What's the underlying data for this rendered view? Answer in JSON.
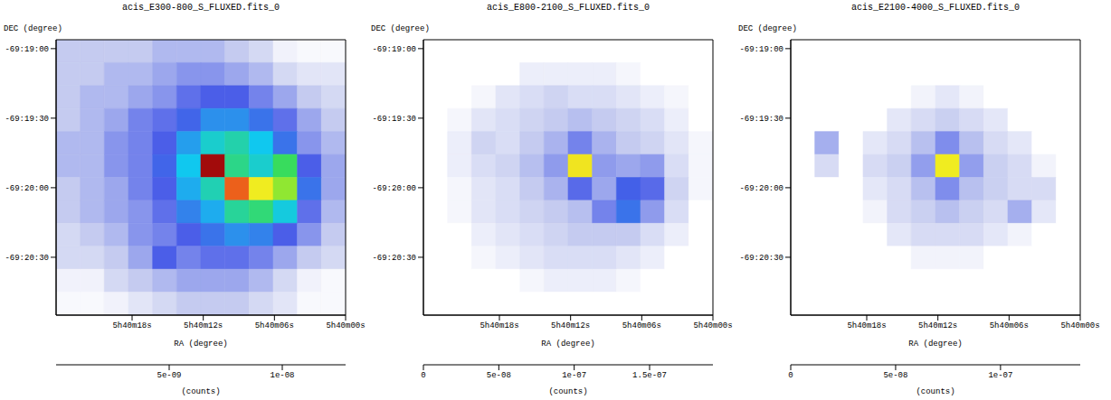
{
  "chart_data": [
    {
      "type": "heatmap",
      "title": "acis_E300-800_S_FLUXED.fits_0",
      "x_label": "RA (degree)",
      "y_label": "DEC (degree)",
      "xlim": [
        85.1017,
        85.0
      ],
      "ylim": [
        -69.3486,
        -69.3156
      ],
      "xticks": [
        {
          "value": 85.075,
          "label": "5h40m18s"
        },
        {
          "value": 85.05,
          "label": "5h40m12s"
        },
        {
          "value": 85.025,
          "label": "5h40m06s"
        },
        {
          "value": 85.0,
          "label": "5h40m00s"
        }
      ],
      "yticks": [
        {
          "value": -69.316667,
          "label": "-69:19:00"
        },
        {
          "value": -69.325,
          "label": "-69:19:30"
        },
        {
          "value": -69.333333,
          "label": "-69:20:00"
        },
        {
          "value": -69.341667,
          "label": "-69:20:30"
        }
      ],
      "cells": [
        [
          4e-10,
          4e-10,
          4e-10,
          4e-10,
          5e-10,
          5e-10,
          5e-10,
          4e-10,
          3e-10,
          1e-10,
          5e-11,
          5e-11
        ],
        [
          4e-10,
          4e-10,
          5e-10,
          5e-10,
          6e-10,
          7e-10,
          7e-10,
          6e-10,
          5e-10,
          3e-10,
          2e-10,
          2e-10
        ],
        [
          4e-10,
          5e-10,
          5e-10,
          6e-10,
          7e-10,
          9e-10,
          1e-09,
          1e-09,
          8e-10,
          6e-10,
          4e-10,
          3e-10
        ],
        [
          4e-10,
          5e-10,
          6e-10,
          8e-10,
          9e-10,
          1.1e-09,
          1.4e-09,
          1.4e-09,
          1.2e-09,
          9e-10,
          6e-10,
          4e-10
        ],
        [
          5e-10,
          5e-10,
          7e-10,
          8e-10,
          1e-09,
          1.5e-09,
          2.2e-09,
          2.6e-09,
          1.8e-09,
          1.2e-09,
          7e-10,
          5e-10
        ],
        [
          5e-10,
          5e-10,
          7e-10,
          8e-10,
          1.1e-09,
          1.8e-09,
          1.15e-08,
          3e-09,
          2.2e-09,
          3.5e-09,
          1e-09,
          6e-10
        ],
        [
          4e-10,
          5e-10,
          6e-10,
          8e-10,
          1e-09,
          1.6e-09,
          2.5e-09,
          9.5e-09,
          6.5e-09,
          5e-09,
          1.2e-09,
          6e-10
        ],
        [
          4e-10,
          5e-10,
          6e-10,
          7e-10,
          9e-10,
          1.3e-09,
          1.6e-09,
          2.8e-09,
          3.2e-09,
          2e-09,
          9e-10,
          5e-10
        ],
        [
          3e-10,
          4e-10,
          5e-10,
          7e-10,
          8e-10,
          1e-09,
          1.2e-09,
          1.4e-09,
          1.3e-09,
          1e-09,
          7e-10,
          4e-10
        ],
        [
          3e-10,
          3e-10,
          4e-10,
          6e-10,
          1e-09,
          8e-10,
          9e-10,
          9e-10,
          8e-10,
          6e-10,
          4e-10,
          3e-10
        ],
        [
          1e-10,
          1e-10,
          3e-10,
          4e-10,
          5e-10,
          6e-10,
          6e-10,
          6e-10,
          5e-10,
          3e-10,
          1e-10,
          5e-11
        ],
        [
          5e-11,
          5e-11,
          1e-10,
          2e-10,
          3e-10,
          4e-10,
          4e-10,
          4e-10,
          3e-10,
          2e-10,
          5e-11,
          5e-11
        ]
      ],
      "colorbar_range": [
        0,
        1.28e-08
      ],
      "colorbar_ticks": [
        {
          "value": 5e-09,
          "label": "5e-09"
        },
        {
          "value": 1e-08,
          "label": "1e-08"
        }
      ],
      "colorbar_label": "(counts)"
    },
    {
      "type": "heatmap",
      "title": "acis_E800-2100_S_FLUXED.fits_0",
      "x_label": "RA (degree)",
      "y_label": "DEC (degree)",
      "xlim": [
        85.1017,
        85.0
      ],
      "ylim": [
        -69.3486,
        -69.3156
      ],
      "xticks": [
        {
          "value": 85.075,
          "label": "5h40m18s"
        },
        {
          "value": 85.05,
          "label": "5h40m12s"
        },
        {
          "value": 85.025,
          "label": "5h40m06s"
        },
        {
          "value": 85.0,
          "label": "5h40m00s"
        }
      ],
      "yticks": [
        {
          "value": -69.316667,
          "label": "-69:19:00"
        },
        {
          "value": -69.325,
          "label": "-69:19:30"
        },
        {
          "value": -69.333333,
          "label": "-69:20:00"
        },
        {
          "value": -69.341667,
          "label": "-69:20:30"
        }
      ],
      "cells": [
        [
          0,
          0,
          0,
          0,
          0,
          0,
          0,
          0,
          0,
          0,
          0,
          0
        ],
        [
          0,
          0,
          0,
          0,
          2e-09,
          2e-09,
          2e-09,
          2e-09,
          1e-09,
          0,
          0,
          0
        ],
        [
          0,
          0,
          1e-09,
          3e-09,
          4e-09,
          5e-09,
          4e-09,
          4e-09,
          3e-09,
          2e-09,
          1e-09,
          0
        ],
        [
          0,
          1e-09,
          3e-09,
          4e-09,
          5e-09,
          6e-09,
          7e-09,
          6e-09,
          5e-09,
          4e-09,
          2e-09,
          0
        ],
        [
          0,
          2e-09,
          5e-09,
          4e-09,
          6e-09,
          8e-09,
          1.2e-08,
          8e-09,
          6e-09,
          5e-09,
          3e-09,
          1e-09
        ],
        [
          0,
          2e-09,
          4e-09,
          5e-09,
          7e-09,
          1e-08,
          1e-07,
          1e-08,
          9e-09,
          1e-08,
          4e-09,
          1e-09
        ],
        [
          0,
          1e-09,
          3e-09,
          4e-09,
          6e-09,
          8e-09,
          1.4e-08,
          9e-09,
          1.6e-08,
          1.4e-08,
          5e-09,
          1e-09
        ],
        [
          0,
          1e-09,
          3e-09,
          4e-09,
          5e-09,
          6e-09,
          7e-09,
          1.2e-08,
          1.8e-08,
          1e-08,
          4e-09,
          0
        ],
        [
          0,
          0,
          2e-09,
          3e-09,
          4e-09,
          5e-09,
          6e-09,
          6e-09,
          6e-09,
          4e-09,
          2e-09,
          0
        ],
        [
          0,
          0,
          1e-09,
          2e-09,
          3e-09,
          4e-09,
          4e-09,
          4e-09,
          3e-09,
          2e-09,
          0,
          0
        ],
        [
          0,
          0,
          0,
          0,
          1e-09,
          2e-09,
          2e-09,
          2e-09,
          1e-09,
          0,
          0,
          0
        ],
        [
          0,
          0,
          0,
          0,
          0,
          0,
          0,
          0,
          0,
          0,
          0,
          0
        ]
      ],
      "colorbar_range": [
        0,
        1.92e-07
      ],
      "colorbar_ticks": [
        0,
        {
          "value": 5e-08,
          "label": "5e-08"
        },
        {
          "value": 1e-07,
          "label": "1e-07"
        },
        {
          "value": 1.5e-07,
          "label": "1.5e-07"
        }
      ],
      "colorbar_label": "(counts)"
    },
    {
      "type": "heatmap",
      "title": "acis_E2100-4000_S_FLUXED.fits_0",
      "x_label": "RA (degree)",
      "y_label": "DEC (degree)",
      "xlim": [
        85.1017,
        85.0
      ],
      "ylim": [
        -69.3486,
        -69.3156
      ],
      "xticks": [
        {
          "value": 85.075,
          "label": "5h40m18s"
        },
        {
          "value": 85.05,
          "label": "5h40m12s"
        },
        {
          "value": 85.025,
          "label": "5h40m06s"
        },
        {
          "value": 85.0,
          "label": "5h40m00s"
        }
      ],
      "yticks": [
        {
          "value": -69.316667,
          "label": "-69:19:00"
        },
        {
          "value": -69.325,
          "label": "-69:19:30"
        },
        {
          "value": -69.333333,
          "label": "-69:20:00"
        },
        {
          "value": -69.341667,
          "label": "-69:20:30"
        }
      ],
      "cells": [
        [
          0,
          0,
          0,
          0,
          0,
          0,
          0,
          0,
          0,
          0,
          0,
          0
        ],
        [
          0,
          0,
          0,
          0,
          0,
          0,
          0,
          0,
          0,
          0,
          0,
          0
        ],
        [
          0,
          0,
          0,
          0,
          0,
          1e-09,
          2e-09,
          1e-09,
          0,
          0,
          0,
          0
        ],
        [
          0,
          0,
          0,
          0,
          2e-09,
          3e-09,
          4e-09,
          3e-09,
          2e-09,
          0,
          0,
          0
        ],
        [
          0,
          6e-09,
          0,
          2e-09,
          3e-09,
          5e-09,
          8e-09,
          5e-09,
          3e-09,
          2e-09,
          0,
          0
        ],
        [
          0,
          3e-09,
          0,
          3e-09,
          4e-09,
          7e-09,
          7e-08,
          7e-09,
          4e-09,
          3e-09,
          1e-09,
          0
        ],
        [
          0,
          0,
          0,
          2e-09,
          3e-09,
          5e-09,
          8e-09,
          5e-09,
          4e-09,
          3e-09,
          3e-09,
          0
        ],
        [
          0,
          0,
          0,
          1e-09,
          3e-09,
          4e-09,
          5e-09,
          4e-09,
          3e-09,
          6e-09,
          2e-09,
          0
        ],
        [
          0,
          0,
          0,
          0,
          2e-09,
          3e-09,
          3e-09,
          3e-09,
          2e-09,
          1e-09,
          0,
          0
        ],
        [
          0,
          0,
          0,
          0,
          0,
          1e-09,
          1e-09,
          1e-09,
          0,
          0,
          0,
          0
        ],
        [
          0,
          0,
          0,
          0,
          0,
          0,
          0,
          0,
          0,
          0,
          0,
          0
        ],
        [
          0,
          0,
          0,
          0,
          0,
          0,
          0,
          0,
          0,
          0,
          0,
          0
        ]
      ],
      "colorbar_range": [
        0,
        1.38e-07
      ],
      "colorbar_ticks": [
        0,
        {
          "value": 5e-08,
          "label": "5e-08"
        },
        {
          "value": 1e-07,
          "label": "1e-07"
        }
      ],
      "colorbar_label": "(counts)"
    }
  ]
}
